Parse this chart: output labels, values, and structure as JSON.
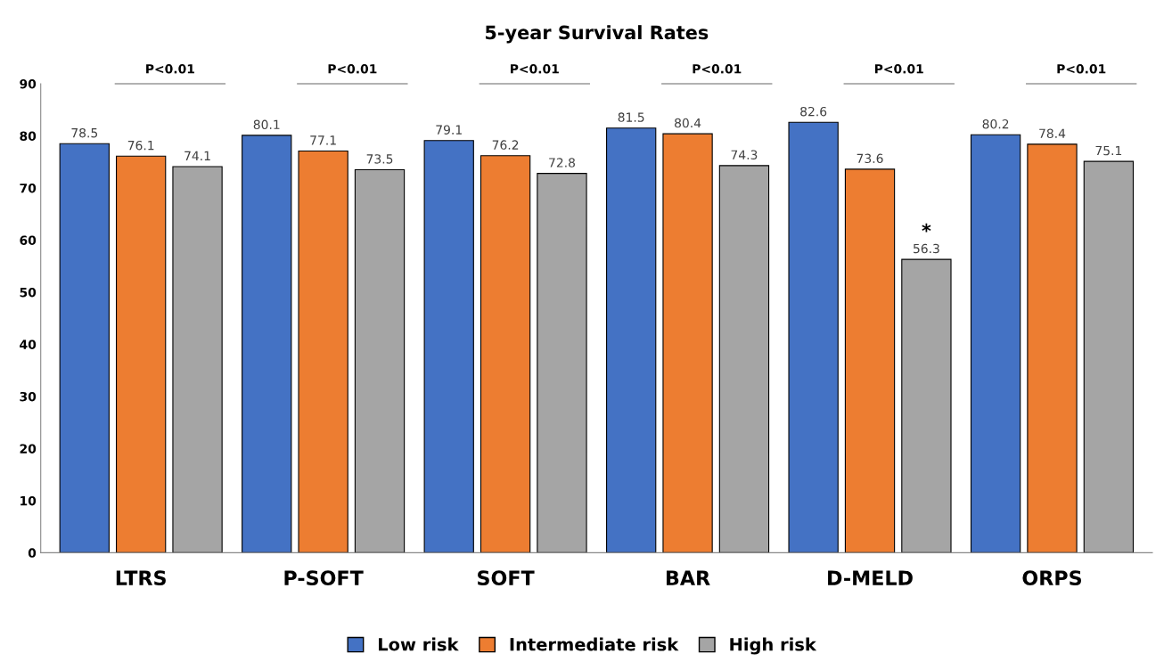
{
  "chart_data": {
    "type": "bar",
    "title": "5-year Survival Rates",
    "categories": [
      "LTRS",
      "P-SOFT",
      "SOFT",
      "BAR",
      "D-MELD",
      "ORPS"
    ],
    "series": [
      {
        "name": "Low risk",
        "color": "#4472c4",
        "values": [
          78.5,
          80.1,
          79.1,
          81.5,
          82.6,
          80.2
        ]
      },
      {
        "name": "Intermediate risk",
        "color": "#ed7d31",
        "values": [
          76.1,
          77.1,
          76.2,
          80.4,
          73.6,
          78.4
        ]
      },
      {
        "name": "High risk",
        "color": "#a5a5a5",
        "values": [
          74.1,
          73.5,
          72.8,
          74.3,
          56.3,
          75.1
        ]
      }
    ],
    "ylim": [
      0,
      90
    ],
    "yticks": [
      0,
      10,
      20,
      30,
      40,
      50,
      60,
      70,
      80,
      90
    ],
    "data_labels": true,
    "grid": false,
    "legend": "bottom",
    "annotations": [
      "P<0.01",
      "P<0.01",
      "P<0.01",
      "P<0.01",
      "P<0.01",
      "P<0.01",
      "*"
    ]
  }
}
